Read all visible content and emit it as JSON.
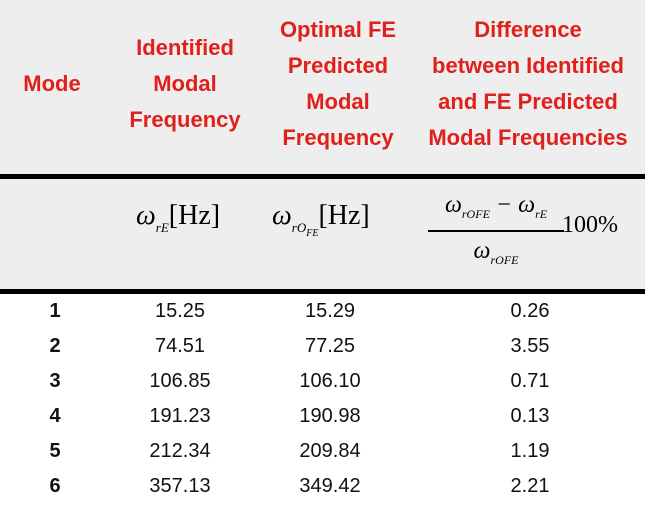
{
  "headers": {
    "mode": [
      "Mode"
    ],
    "identified": [
      "Identified",
      "Modal",
      "Frequency"
    ],
    "optimal": [
      "Optimal FE",
      "Predicted",
      "Modal",
      "Frequency"
    ],
    "difference": [
      "Difference",
      "between Identified",
      "and FE Predicted",
      "Modal Frequencies"
    ]
  },
  "formulas": {
    "omega": "ω",
    "sub_rE": "rE",
    "sub_rO": "rO",
    "sub_FE": "FE",
    "unit_hz": "[Hz]",
    "minus": "−",
    "percent": "100%"
  },
  "rows": [
    {
      "mode": "1",
      "identified": "15.25",
      "optimal": "15.29",
      "difference": "0.26"
    },
    {
      "mode": "2",
      "identified": "74.51",
      "optimal": "77.25",
      "difference": "3.55"
    },
    {
      "mode": "3",
      "identified": "106.85",
      "optimal": "106.10",
      "difference": "0.71"
    },
    {
      "mode": "4",
      "identified": "191.23",
      "optimal": "190.98",
      "difference": "0.13"
    },
    {
      "mode": "5",
      "identified": "212.34",
      "optimal": "209.84",
      "difference": "1.19"
    },
    {
      "mode": "6",
      "identified": "357.13",
      "optimal": "349.42",
      "difference": "2.21"
    }
  ],
  "colors": {
    "header_text": "#e0201b",
    "header_bg": "#eeeeee",
    "rule": "#000000"
  }
}
